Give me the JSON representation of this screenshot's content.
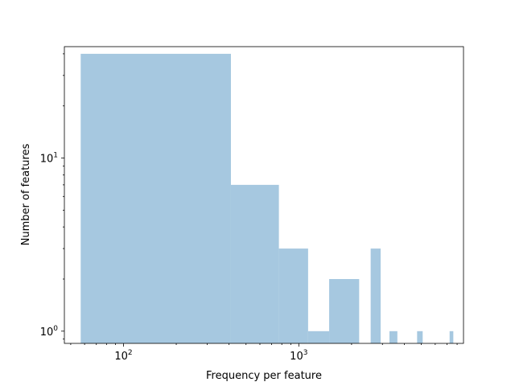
{
  "chart_data": {
    "type": "bar",
    "title": "",
    "xlabel": "Frequency per feature",
    "ylabel": "Number of features",
    "x_scale": "log",
    "y_scale": "log",
    "xlim": [
      46,
      8700
    ],
    "ylim": [
      0.85,
      44
    ],
    "grid": false,
    "bar_color": "#a6c8e0",
    "bins": [
      {
        "x0": 57,
        "x1": 410,
        "count": 40
      },
      {
        "x0": 410,
        "x1": 770,
        "count": 7
      },
      {
        "x0": 770,
        "x1": 1130,
        "count": 3
      },
      {
        "x0": 1130,
        "x1": 1490,
        "count": 1
      },
      {
        "x0": 1490,
        "x1": 2210,
        "count": 2
      },
      {
        "x0": 2570,
        "x1": 2930,
        "count": 3
      },
      {
        "x0": 3290,
        "x1": 3650,
        "count": 1
      },
      {
        "x0": 4730,
        "x1": 5090,
        "count": 1
      },
      {
        "x0": 7250,
        "x1": 7610,
        "count": 1
      }
    ],
    "x_ticks": [
      {
        "value": 100,
        "base": "10",
        "exp": "2"
      },
      {
        "value": 1000,
        "base": "10",
        "exp": "3"
      }
    ],
    "y_ticks": [
      {
        "value": 1,
        "base": "10",
        "exp": "0"
      },
      {
        "value": 10,
        "base": "10",
        "exp": "1"
      }
    ]
  }
}
